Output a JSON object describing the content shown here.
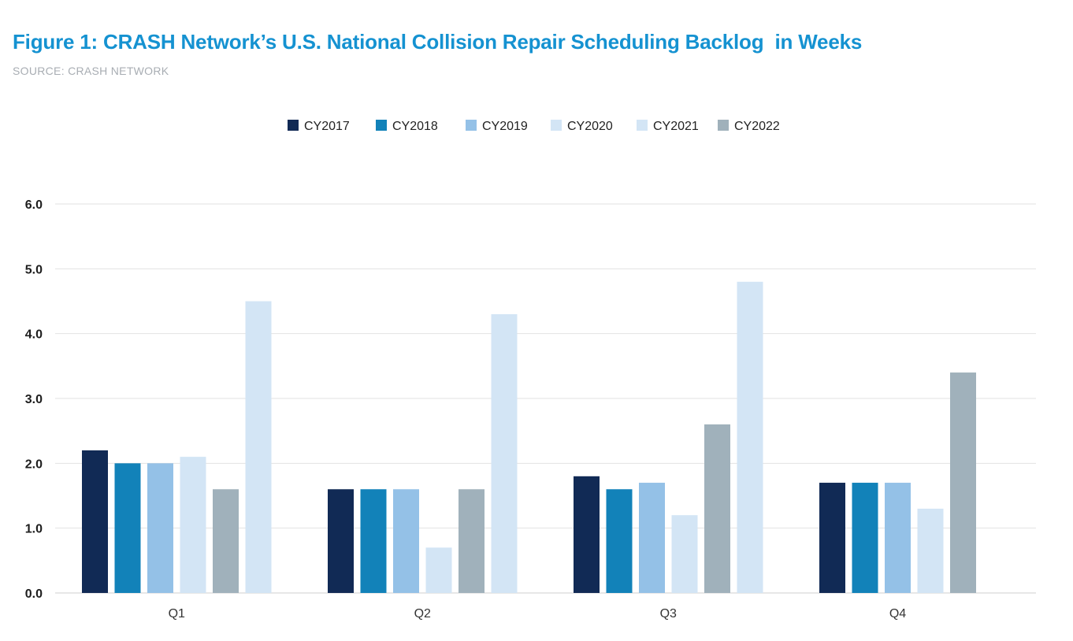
{
  "figure": {
    "title": "Figure 1: CRASH Network’s U.S. National Collision Repair Scheduling Backlog  in Weeks",
    "source": "SOURCE: CRASH NETWORK"
  },
  "chart_data": {
    "type": "bar",
    "title": "Figure 1: CRASH Network’s U.S. National Collision Repair Scheduling Backlog  in Weeks",
    "subtitle": "SOURCE: CRASH NETWORK",
    "xlabel": "",
    "ylabel": "",
    "ylim": [
      0,
      6
    ],
    "yticks": [
      "0.0",
      "1.0",
      "2.0",
      "3.0",
      "4.0",
      "5.0",
      "6.0"
    ],
    "categories": [
      "Q1",
      "Q2",
      "Q3",
      "Q4"
    ],
    "grid": true,
    "legend_position": "top-center",
    "series": [
      {
        "name": "CY2017",
        "color": "#112a55",
        "values": [
          2.2,
          1.6,
          1.8,
          1.7
        ]
      },
      {
        "name": "CY2018",
        "color": "#1282b9",
        "values": [
          2.0,
          1.6,
          1.6,
          1.7
        ]
      },
      {
        "name": "CY2019",
        "color": "#94c1e7",
        "values": [
          2.0,
          1.6,
          1.7,
          1.7
        ]
      },
      {
        "name": "CY2020",
        "color": "#d3e5f5",
        "values": [
          2.1,
          0.7,
          1.2,
          1.3
        ]
      },
      {
        "name": "CY2022",
        "color": "#a0b1bb",
        "values": [
          1.6,
          1.6,
          2.6,
          3.4
        ]
      },
      {
        "name": "CY2021",
        "color": "#d3e5f5",
        "values": [
          4.5,
          4.3,
          4.8,
          null
        ]
      }
    ],
    "legend_order": [
      "CY2017",
      "CY2018",
      "CY2019",
      "CY2020",
      "CY2021",
      "CY2022"
    ]
  }
}
